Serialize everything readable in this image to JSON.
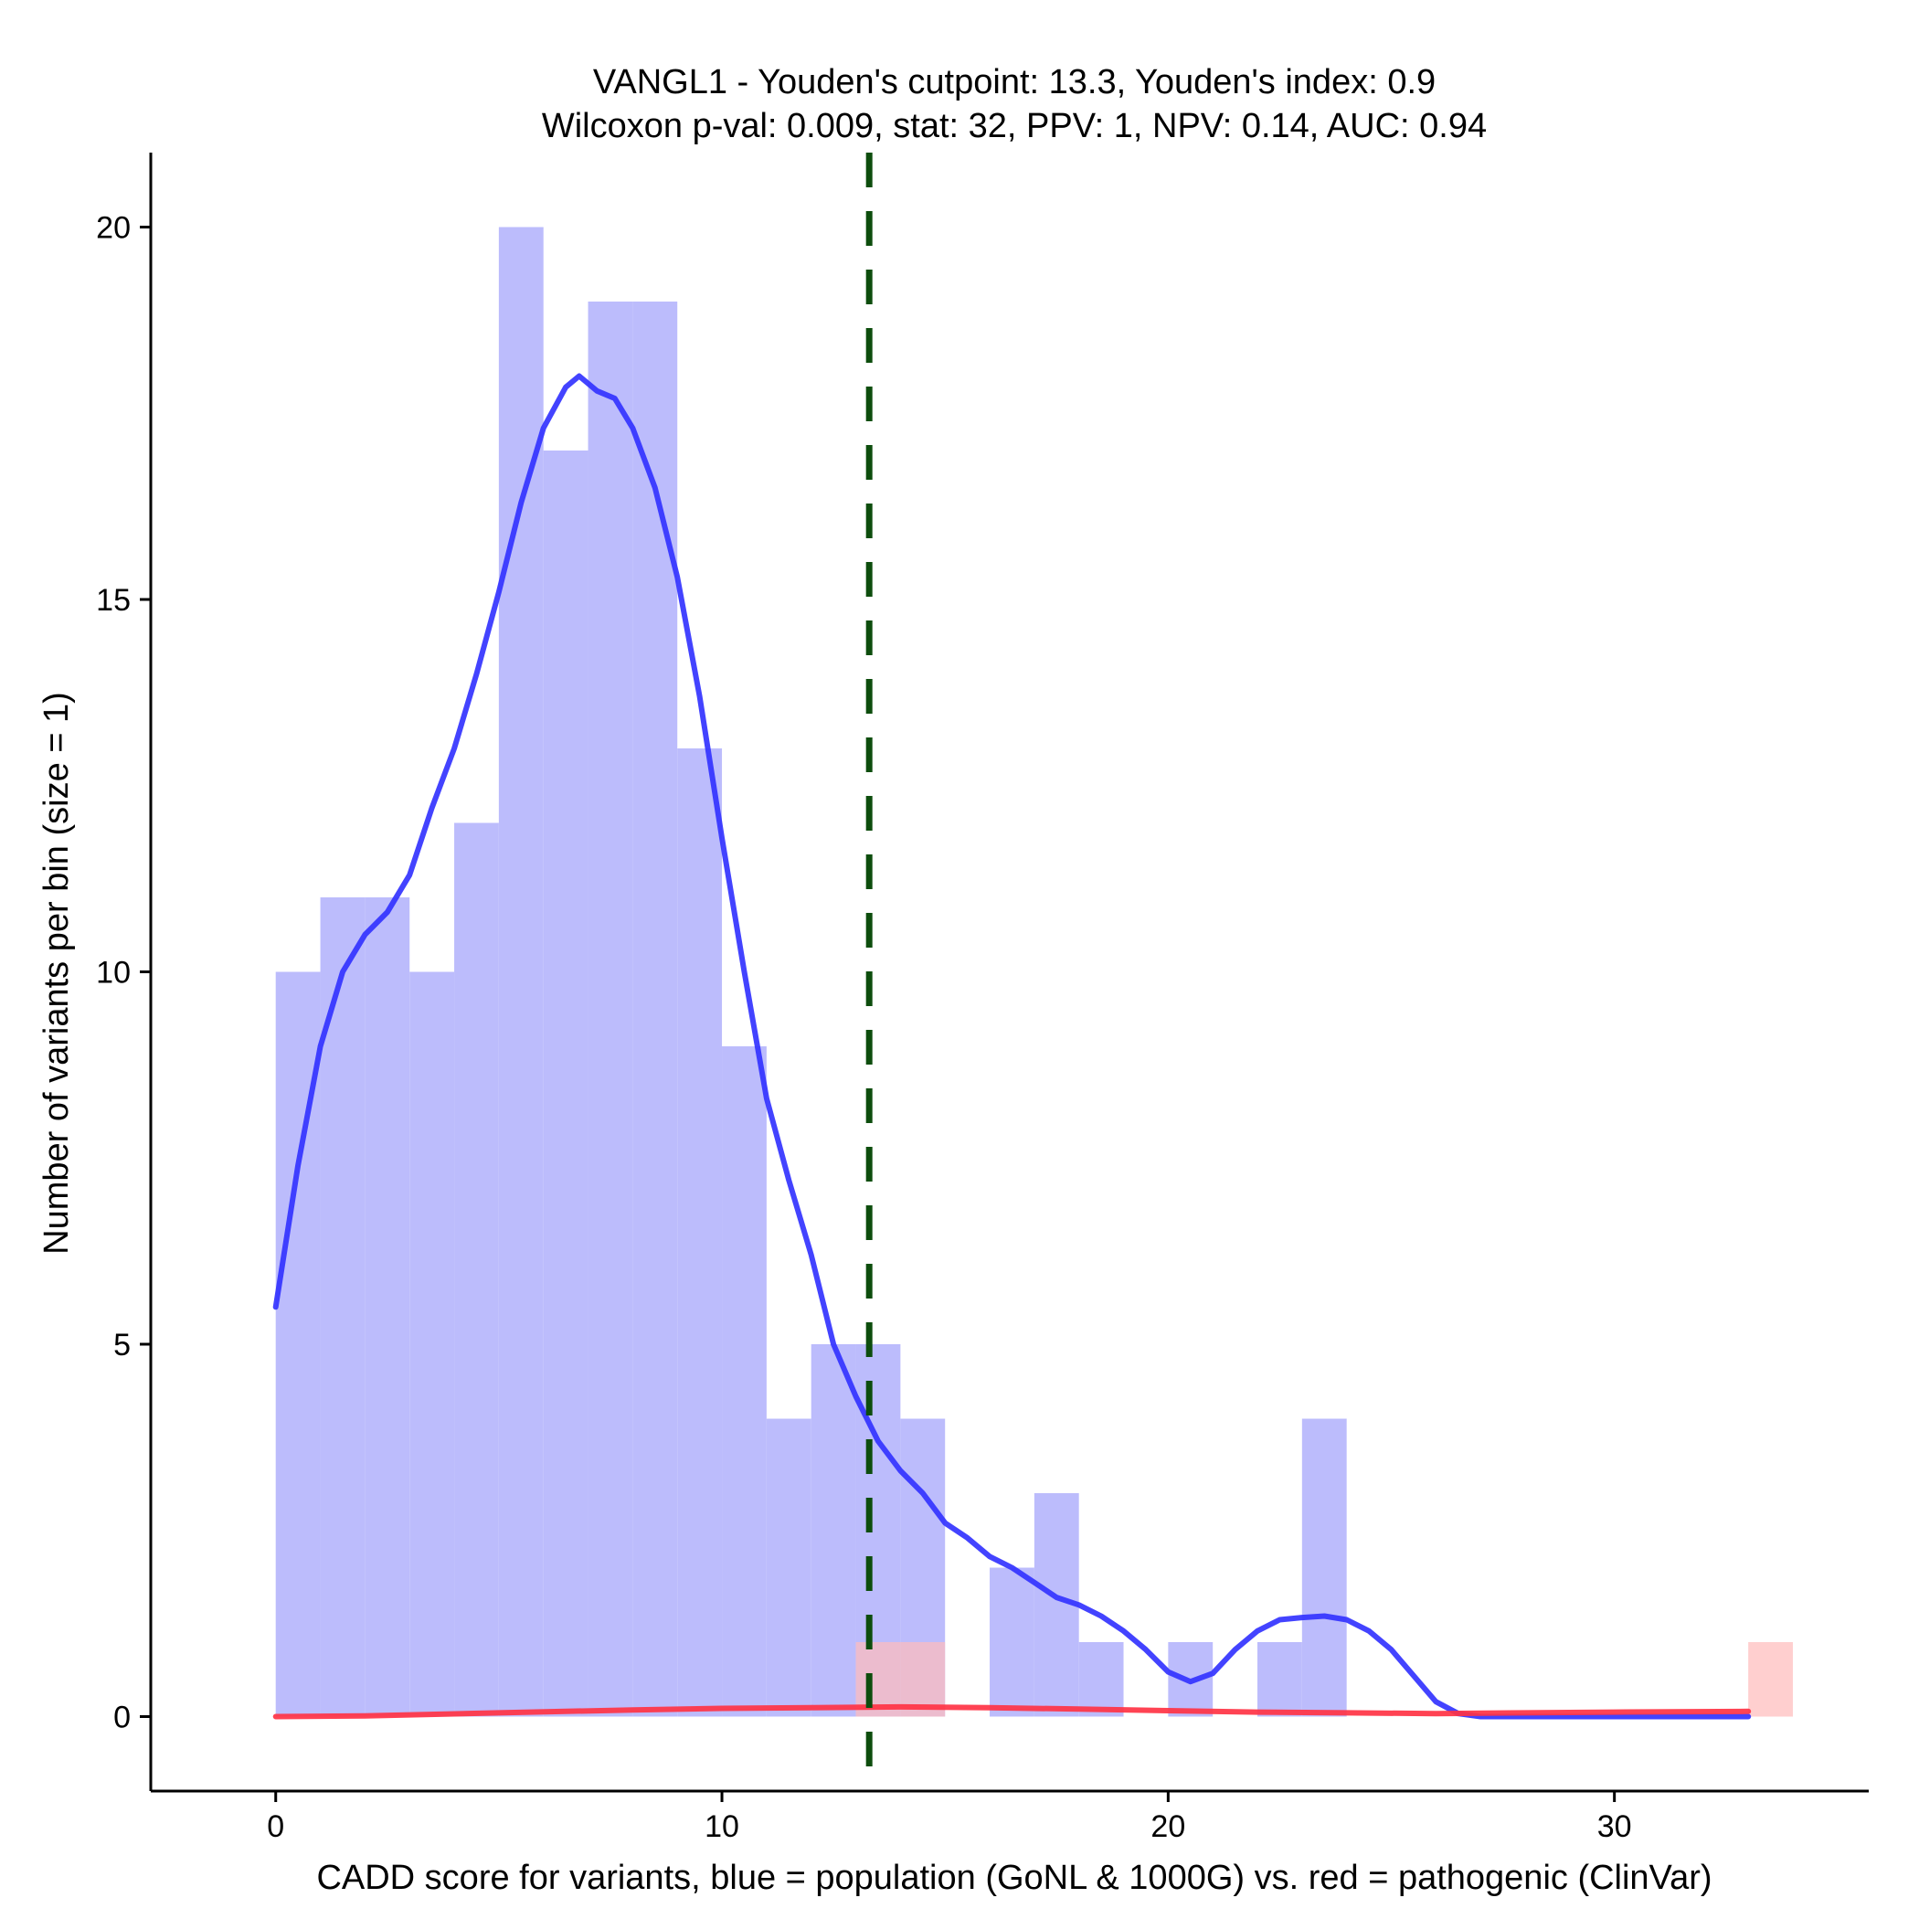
{
  "chart_data": {
    "type": "histogram",
    "title": "VANGL1 - Youden's cutpoint: 13.3, Youden's index: 0.9",
    "subtitle": "Wilcoxon p-val: 0.009, stat: 32, PPV: 1, NPV: 0.14, AUC: 0.94",
    "xlabel": "CADD score for variants, blue = population (GoNL & 1000G) vs. red = pathogenic (ClinVar)",
    "ylabel": "Number of variants per bin (size = 1)",
    "xlim": [
      -2.8,
      35.7
    ],
    "ylim": [
      -1,
      21
    ],
    "x_ticks": [
      0,
      10,
      20,
      30
    ],
    "y_ticks": [
      0,
      5,
      10,
      15,
      20
    ],
    "bin_width": 1,
    "series": [
      {
        "name": "population (GoNL & 1000G)",
        "color": "#bcbcfc",
        "bins": [
          {
            "x0": 0,
            "count": 10
          },
          {
            "x0": 1,
            "count": 11
          },
          {
            "x0": 2,
            "count": 11
          },
          {
            "x0": 3,
            "count": 10
          },
          {
            "x0": 4,
            "count": 12
          },
          {
            "x0": 5,
            "count": 20
          },
          {
            "x0": 6,
            "count": 17
          },
          {
            "x0": 7,
            "count": 19
          },
          {
            "x0": 8,
            "count": 19
          },
          {
            "x0": 9,
            "count": 13
          },
          {
            "x0": 10,
            "count": 9
          },
          {
            "x0": 11,
            "count": 4
          },
          {
            "x0": 12,
            "count": 5
          },
          {
            "x0": 13,
            "count": 5
          },
          {
            "x0": 14,
            "count": 4
          },
          {
            "x0": 16,
            "count": 2
          },
          {
            "x0": 17,
            "count": 3
          },
          {
            "x0": 18,
            "count": 1
          },
          {
            "x0": 20,
            "count": 1
          },
          {
            "x0": 22,
            "count": 1
          },
          {
            "x0": 23,
            "count": 4
          }
        ]
      },
      {
        "name": "pathogenic (ClinVar)",
        "color": "#ffbcbc",
        "bins": [
          {
            "x0": 13,
            "count": 1
          },
          {
            "x0": 14,
            "count": 1
          },
          {
            "x0": 33,
            "count": 1
          }
        ]
      }
    ],
    "density_curves": [
      {
        "name": "population density",
        "color": "#3333ff",
        "points": [
          [
            0.0,
            5.5
          ],
          [
            0.5,
            7.4
          ],
          [
            1.0,
            9.0
          ],
          [
            1.5,
            10.0
          ],
          [
            2.0,
            10.5
          ],
          [
            2.5,
            10.8
          ],
          [
            3.0,
            11.3
          ],
          [
            3.5,
            12.2
          ],
          [
            4.0,
            13.0
          ],
          [
            4.5,
            14.0
          ],
          [
            5.0,
            15.1
          ],
          [
            5.5,
            16.3
          ],
          [
            6.0,
            17.3
          ],
          [
            6.5,
            17.85
          ],
          [
            6.8,
            18.0
          ],
          [
            7.2,
            17.8
          ],
          [
            7.6,
            17.7
          ],
          [
            8.0,
            17.3
          ],
          [
            8.5,
            16.5
          ],
          [
            9.0,
            15.3
          ],
          [
            9.5,
            13.7
          ],
          [
            10.0,
            11.8
          ],
          [
            10.5,
            10.0
          ],
          [
            11.0,
            8.3
          ],
          [
            11.5,
            7.2
          ],
          [
            12.0,
            6.2
          ],
          [
            12.5,
            5.0
          ],
          [
            13.0,
            4.3
          ],
          [
            13.5,
            3.7
          ],
          [
            14.0,
            3.3
          ],
          [
            14.5,
            3.0
          ],
          [
            15.0,
            2.6
          ],
          [
            15.5,
            2.4
          ],
          [
            16.0,
            2.15
          ],
          [
            16.5,
            2.0
          ],
          [
            17.0,
            1.8
          ],
          [
            17.5,
            1.6
          ],
          [
            18.0,
            1.5
          ],
          [
            18.5,
            1.35
          ],
          [
            19.0,
            1.15
          ],
          [
            19.5,
            0.9
          ],
          [
            20.0,
            0.6
          ],
          [
            20.5,
            0.47
          ],
          [
            21.0,
            0.58
          ],
          [
            21.5,
            0.9
          ],
          [
            22.0,
            1.15
          ],
          [
            22.5,
            1.3
          ],
          [
            23.0,
            1.33
          ],
          [
            23.5,
            1.35
          ],
          [
            24.0,
            1.3
          ],
          [
            24.5,
            1.15
          ],
          [
            25.0,
            0.9
          ],
          [
            25.5,
            0.55
          ],
          [
            26.0,
            0.2
          ],
          [
            26.5,
            0.04
          ],
          [
            27.0,
            0.0
          ],
          [
            33.0,
            0.0
          ]
        ]
      },
      {
        "name": "pathogenic density",
        "color": "#ff3344",
        "points": [
          [
            0.0,
            0.0
          ],
          [
            2.0,
            0.01
          ],
          [
            5.0,
            0.05
          ],
          [
            8.0,
            0.09
          ],
          [
            10.0,
            0.11
          ],
          [
            12.0,
            0.12
          ],
          [
            14.0,
            0.13
          ],
          [
            16.0,
            0.12
          ],
          [
            18.0,
            0.1
          ],
          [
            20.0,
            0.08
          ],
          [
            22.0,
            0.06
          ],
          [
            24.0,
            0.05
          ],
          [
            26.0,
            0.04
          ],
          [
            28.0,
            0.05
          ],
          [
            30.0,
            0.06
          ],
          [
            33.0,
            0.07
          ]
        ]
      }
    ],
    "cutpoint": {
      "x": 13.3,
      "label": "Youden's cutpoint",
      "color": "#0d4d0d"
    }
  }
}
